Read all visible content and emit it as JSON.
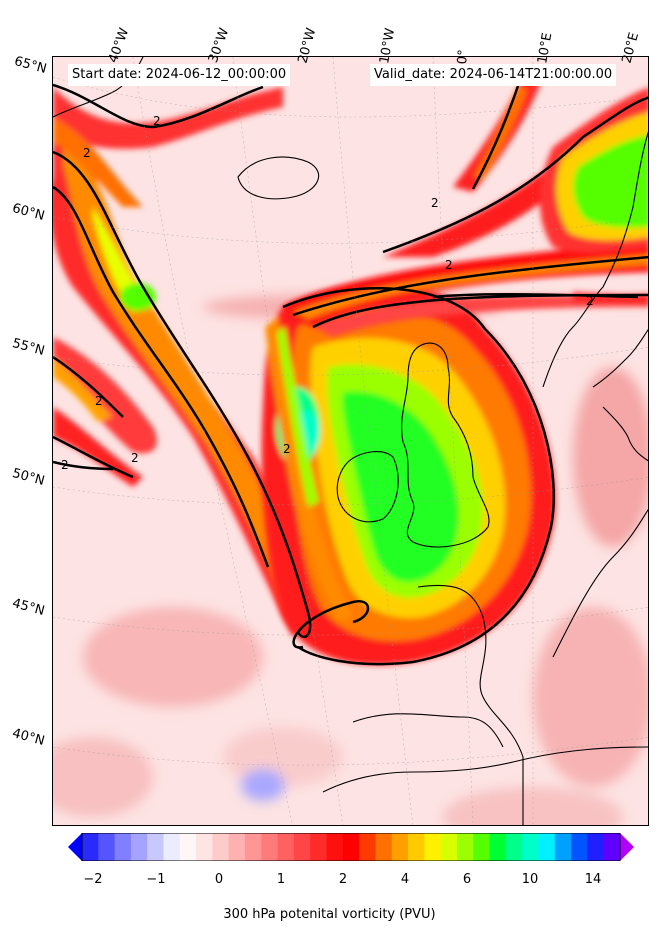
{
  "header": {
    "start_date": "Start date: 2024-06-12_00:00:00",
    "valid_date": "Valid_date: 2024-06-14T21:00:00.00"
  },
  "lon_labels": [
    "40°W",
    "30°W",
    "20°W",
    "10°W",
    "0°",
    "10°E",
    "20°E"
  ],
  "lat_labels": [
    "65°N",
    "60°N",
    "55°N",
    "50°N",
    "45°N",
    "40°N"
  ],
  "contour_value_label": "2",
  "colorbar": {
    "label": "300 hPa potenital vorticity (PVU)",
    "ticks": [
      "−2",
      "−1",
      "0",
      "1",
      "2",
      "4",
      "6",
      "10",
      "14"
    ],
    "colors": [
      "#0000ff",
      "#2a2aff",
      "#5555ff",
      "#7f7fff",
      "#a4a4ff",
      "#c8c8ff",
      "#ececff",
      "#fff7f7",
      "#ffe4e4",
      "#ffcaca",
      "#ffb0b0",
      "#ff9595",
      "#ff7b7b",
      "#ff6060",
      "#ff4545",
      "#ff2b2b",
      "#ff1010",
      "#ff0000",
      "#ff3a00",
      "#ff7000",
      "#ffa000",
      "#ffcb00",
      "#fff000",
      "#d8ff00",
      "#9cff00",
      "#55ff00",
      "#00ff33",
      "#00ff88",
      "#00ffc8",
      "#00f0ff",
      "#00a0ff",
      "#0055ff",
      "#2020ff",
      "#6000ff",
      "#b000ff"
    ]
  }
}
